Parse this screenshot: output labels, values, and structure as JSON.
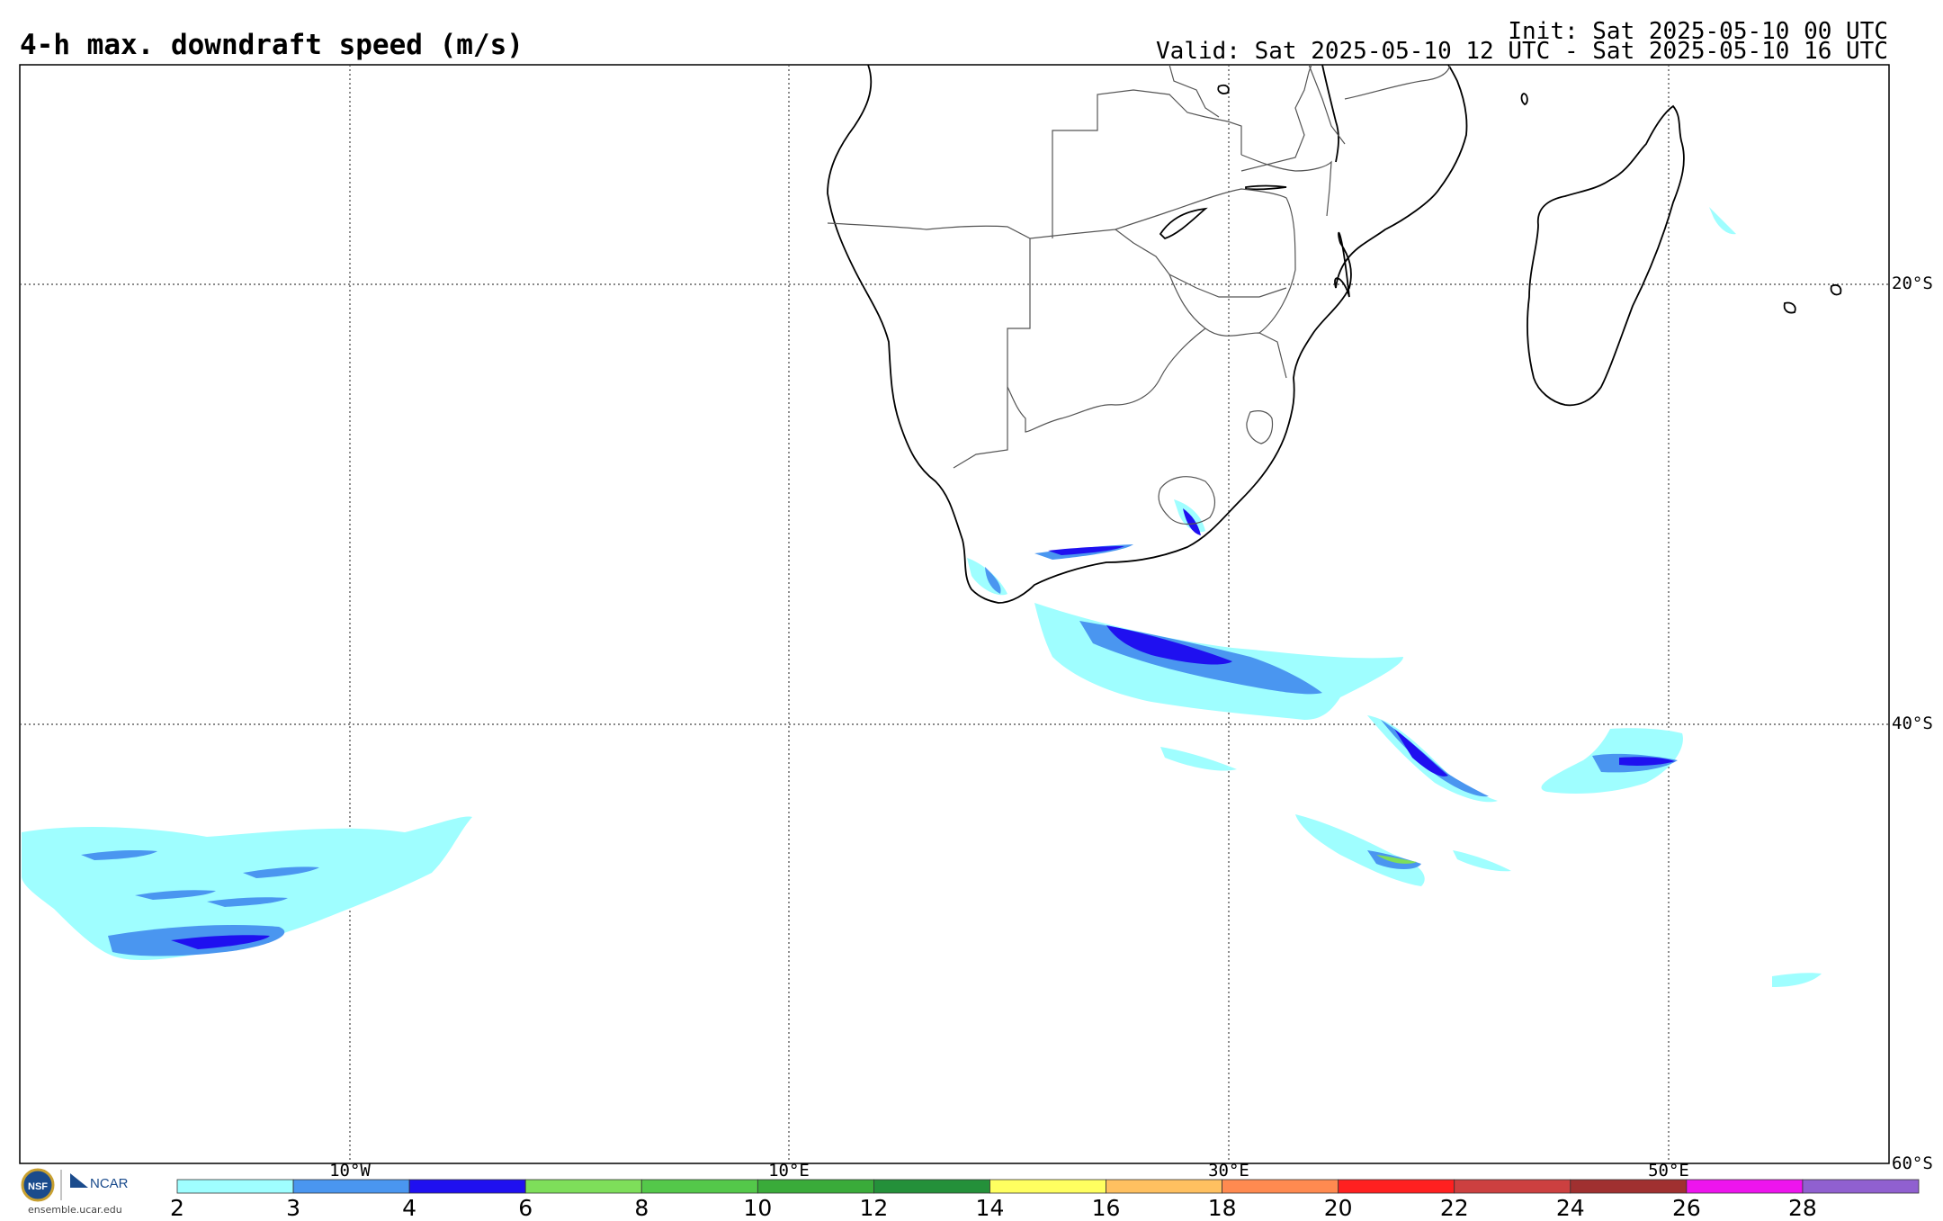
{
  "title": "4-h max. downdraft speed (m/s)",
  "init": "Init: Sat 2025-05-10 00 UTC",
  "valid": "Valid: Sat 2025-05-10 12 UTC - Sat 2025-05-10 16 UTC",
  "lat_labels": [
    "20°S",
    "40°S",
    "60°S"
  ],
  "lon_labels": [
    "10°W",
    "10°E",
    "30°E",
    "50°E"
  ],
  "colorbar": {
    "colors": [
      "#9ffeff",
      "#4a96f0",
      "#1f10f0",
      "#7ede5a",
      "#54c84a",
      "#3aab3a",
      "#24903a",
      "#ffff60",
      "#ffc060",
      "#ff8a50",
      "#ff2020",
      "#cc4040",
      "#a03030",
      "#ee14ee",
      "#9060d0"
    ],
    "ticks": [
      "2",
      "3",
      "4",
      "6",
      "8",
      "10",
      "12",
      "14",
      "16",
      "18",
      "20",
      "22",
      "24",
      "26",
      "28"
    ]
  },
  "logo": {
    "nsf": "NSF",
    "ncar": "NCAR",
    "site": "ensemble.ucar.edu"
  }
}
